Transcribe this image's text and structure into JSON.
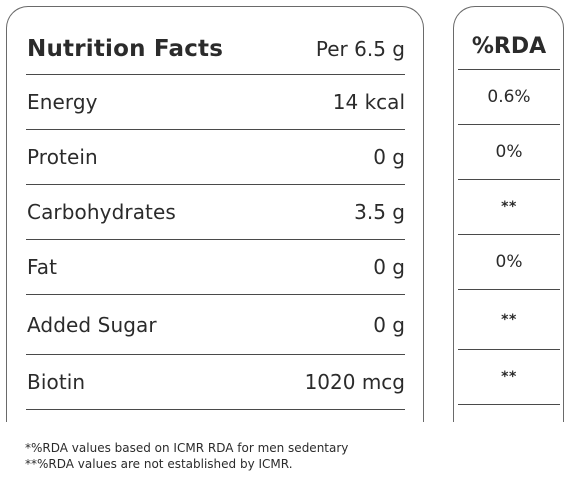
{
  "facts": {
    "title": "Nutrition Facts",
    "serving": "Per 6.5 g",
    "rows": [
      {
        "label": "Energy",
        "value": "14 kcal"
      },
      {
        "label": "Protein",
        "value": "0 g"
      },
      {
        "label": "Carbohydrates",
        "value": "3.5 g"
      },
      {
        "label": "Fat",
        "value": "0 g"
      },
      {
        "label": "Added Sugar",
        "value": "0 g"
      },
      {
        "label": "Biotin",
        "value": "1020 mcg"
      }
    ]
  },
  "rda": {
    "title": "%RDA",
    "values": [
      "0.6%",
      "0%",
      "**",
      "0%",
      "**",
      "**"
    ]
  },
  "footnotes": [
    "*%RDA values based on ICMR RDA for men sedentary",
    "**%RDA values are not established by ICMR."
  ]
}
